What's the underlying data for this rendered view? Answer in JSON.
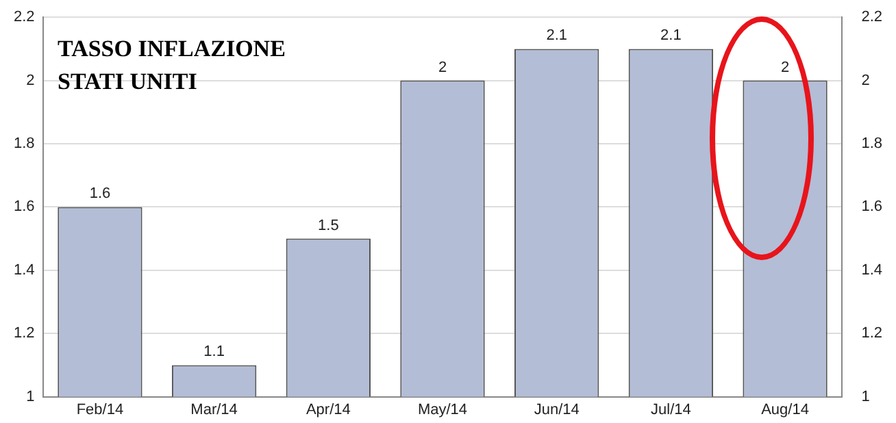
{
  "chart_data": {
    "type": "bar",
    "title": "TASSO INFLAZIONE\nSTATI UNITI",
    "categories": [
      "Feb/14",
      "Mar/14",
      "Apr/14",
      "May/14",
      "Jun/14",
      "Jul/14",
      "Aug/14"
    ],
    "values": [
      1.6,
      1.1,
      1.5,
      2,
      2.1,
      2.1,
      2
    ],
    "color": "#b3bdd6",
    "ylim": [
      1,
      2.2
    ],
    "yticks": [
      1,
      1.2,
      1.4,
      1.6,
      1.8,
      2,
      2.2
    ],
    "y2lim": [
      1,
      2.2
    ],
    "y2ticks": [
      1,
      1.2,
      1.4,
      1.6,
      1.8,
      2,
      2.2
    ],
    "grid": "y",
    "data_labels": true,
    "legend": false
  }
}
